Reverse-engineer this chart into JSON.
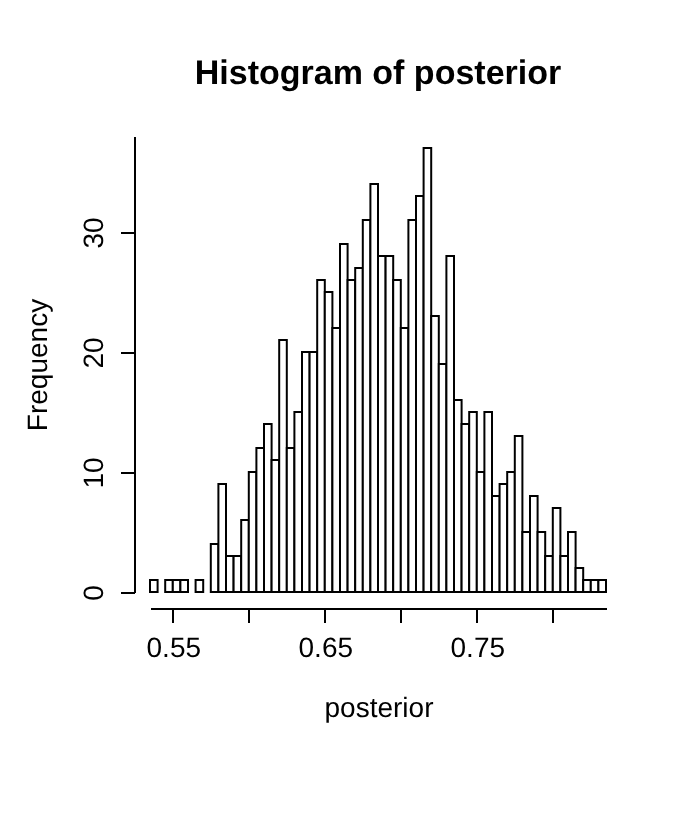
{
  "chart_data": {
    "type": "histogram",
    "title": "Histogram of posterior",
    "xlabel": "posterior",
    "ylabel": "Frequency",
    "bins": [
      0.535,
      0.54,
      0.545,
      0.55,
      0.555,
      0.56,
      0.565,
      0.57,
      0.575,
      0.58,
      0.585,
      0.59,
      0.595,
      0.6,
      0.605,
      0.61,
      0.615,
      0.62,
      0.625,
      0.63,
      0.635,
      0.64,
      0.645,
      0.65,
      0.655,
      0.66,
      0.665,
      0.67,
      0.675,
      0.68,
      0.685,
      0.69,
      0.695,
      0.7,
      0.705,
      0.71,
      0.715,
      0.72,
      0.725,
      0.73,
      0.735,
      0.74,
      0.745,
      0.75,
      0.755,
      0.76,
      0.765,
      0.77,
      0.775,
      0.78,
      0.785,
      0.79,
      0.795,
      0.8,
      0.805,
      0.81,
      0.815,
      0.82,
      0.825,
      0.83,
      0.835
    ],
    "values": [
      1,
      0,
      1,
      1,
      1,
      0,
      1,
      0,
      4,
      9,
      3,
      3,
      6,
      10,
      12,
      14,
      11,
      21,
      12,
      15,
      20,
      20,
      26,
      25,
      22,
      29,
      26,
      27,
      31,
      34,
      28,
      28,
      26,
      22,
      31,
      33,
      37,
      23,
      19,
      28,
      16,
      14,
      15,
      10,
      15,
      8,
      9,
      10,
      13,
      5,
      8,
      5,
      3,
      7,
      3,
      5,
      2,
      1,
      1,
      1
    ],
    "color": "#ffffff",
    "xlim": [
      0.535,
      0.835
    ],
    "xticks": [
      0.55,
      {
        "value": 0.6,
        "label": null
      },
      0.65,
      {
        "value": 0.7,
        "label": null
      },
      0.75,
      {
        "value": 0.8,
        "label": null
      }
    ],
    "ylim": [
      0,
      38
    ],
    "yticks": [
      0,
      10,
      20,
      30
    ],
    "grid": false
  }
}
